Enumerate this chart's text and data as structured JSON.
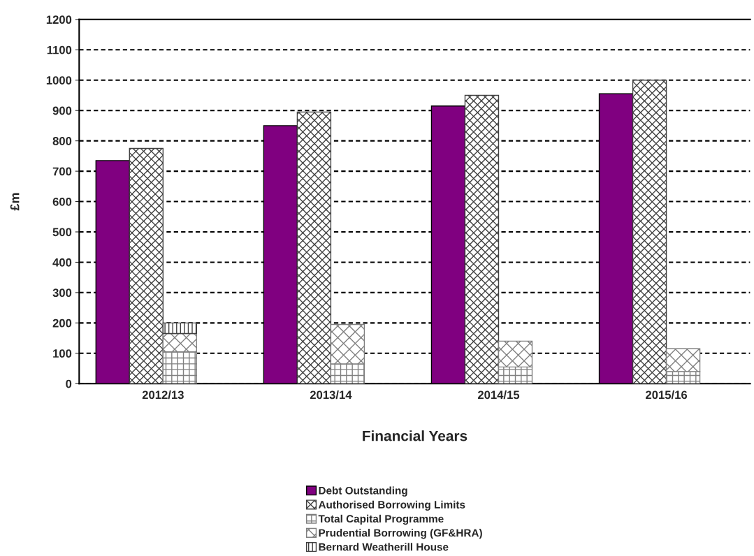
{
  "chart_data": [
    {
      "type": "bar",
      "xlabel": "Financial Years",
      "ylabel": "£m",
      "categories": [
        "2012/13",
        "2013/14",
        "2014/15",
        "2015/16"
      ],
      "series": [
        {
          "name": "Debt Outstanding",
          "color": "#800080",
          "values": [
            735,
            850,
            915,
            955
          ]
        },
        {
          "name": "Authorised Borrowing Limits",
          "color": "#404040",
          "values": [
            775,
            895,
            950,
            1000
          ]
        }
      ],
      "ylim": [
        0,
        1200
      ],
      "yticks": [
        0,
        100,
        200,
        300,
        400,
        500,
        600,
        700,
        800,
        900,
        1000,
        1100,
        1200
      ],
      "grid": "y",
      "legend": "bottom"
    },
    {
      "type": "bar",
      "stacked": true,
      "categories": [
        "2012/13",
        "2013/14",
        "2014/15",
        "2015/16"
      ],
      "series": [
        {
          "name": "Total Capital Programme",
          "color": "#808080",
          "values": [
            105,
            65,
            55,
            40
          ]
        },
        {
          "name": "Prudential Borrowing (GF&HRA)",
          "color": "#808080",
          "values": [
            60,
            130,
            85,
            75
          ]
        },
        {
          "name": "Bernard Weatherill House",
          "color": "#404040",
          "values": [
            35,
            null,
            null,
            null
          ]
        }
      ],
      "ylim": [
        0,
        1200
      ],
      "tick_labels": false,
      "legend": "bottom"
    }
  ]
}
